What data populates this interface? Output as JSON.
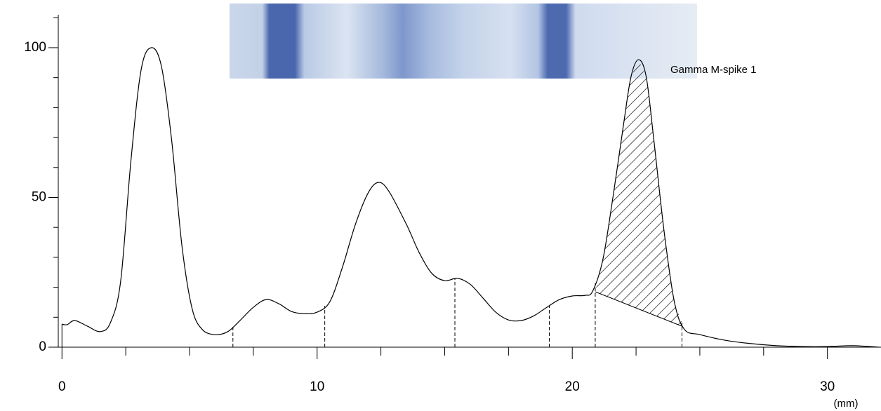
{
  "chart_data": {
    "type": "line",
    "x": [
      0,
      0.2,
      0.5,
      1.0,
      1.5,
      1.9,
      2.3,
      2.7,
      3.1,
      3.5,
      3.9,
      4.3,
      4.7,
      5.1,
      5.5,
      6.0,
      6.5,
      7.0,
      7.5,
      8.0,
      8.5,
      9.0,
      9.5,
      10.0,
      10.5,
      11.0,
      11.5,
      12.0,
      12.4,
      12.8,
      13.5,
      14.0,
      14.5,
      15.0,
      15.5,
      16.0,
      16.5,
      17.0,
      17.5,
      18.0,
      18.5,
      19.0,
      19.5,
      20.0,
      20.5,
      20.8,
      21.2,
      21.6,
      22.0,
      22.3,
      22.6,
      22.9,
      23.2,
      23.6,
      24.0,
      24.4,
      25.0,
      26.0,
      27.0,
      28.0,
      29.0,
      30.0,
      31.0,
      32.0
    ],
    "values": [
      7.7,
      7.5,
      8.9,
      7.0,
      5.2,
      8.2,
      22,
      62,
      92.5,
      100,
      93.7,
      69,
      34,
      12.9,
      5.9,
      4.2,
      5.2,
      9.1,
      13.3,
      15.9,
      14.5,
      11.9,
      11.2,
      11.7,
      15.2,
      26.9,
      41,
      51.5,
      55,
      52.2,
      41,
      31.6,
      24.6,
      22.2,
      23,
      21,
      16.4,
      11.7,
      9.1,
      8.9,
      10.5,
      13.3,
      15.9,
      17.1,
      17.3,
      18.7,
      29.3,
      50.4,
      73.8,
      90.2,
      96,
      90.2,
      69,
      38.6,
      15.2,
      5.9,
      4.2,
      2.3,
      1.2,
      0.5,
      0.2,
      0.2,
      0.5,
      0
    ],
    "color": "#000000",
    "xlim": [
      -0.2,
      32.1
    ],
    "ylim": [
      0,
      111
    ],
    "xticks": [
      0,
      10,
      20,
      30
    ],
    "xminorticks": [
      2.5,
      5,
      7.5,
      12.5,
      15,
      17.5,
      22.5,
      25,
      27.5,
      32.5
    ],
    "yticks": [
      0,
      50,
      100
    ],
    "yminorticks": [
      10,
      20,
      30,
      40,
      60,
      70,
      80,
      90,
      110
    ],
    "xlabel": "(mm)",
    "dividers": [
      6.7,
      10.3,
      15.4,
      19.1,
      20.9,
      24.3
    ],
    "spike": {
      "label": "Gamma M-spike 1",
      "x": [
        20.9,
        24.3
      ],
      "baseline": [
        18.5,
        7
      ]
    }
  }
}
